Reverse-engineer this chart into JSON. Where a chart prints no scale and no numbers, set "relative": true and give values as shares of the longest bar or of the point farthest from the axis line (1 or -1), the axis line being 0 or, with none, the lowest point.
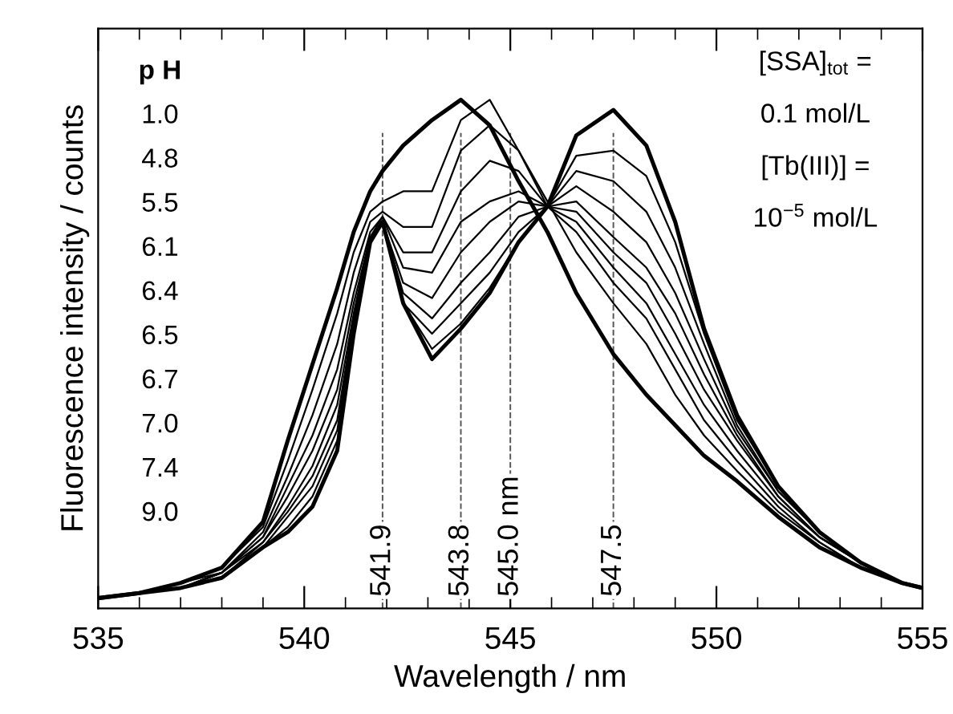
{
  "chart_data": {
    "type": "line",
    "relative": true,
    "xlabel": "Wavelength / nm",
    "ylabel": "Fluorescence intensity / counts",
    "grid": false,
    "marker": "none",
    "line_style": "solid",
    "xlim": [
      535,
      555
    ],
    "xticks": [
      535,
      540,
      545,
      550,
      555
    ],
    "x": [
      535,
      536,
      537,
      538,
      539,
      539.6,
      540.2,
      540.8,
      541.2,
      541.6,
      541.9,
      542.4,
      543.1,
      543.8,
      544.5,
      545.2,
      545.9,
      546.6,
      547.5,
      548.3,
      549,
      549.7,
      550.5,
      551.5,
      552.5,
      553.5,
      554.5,
      555
    ],
    "series": [
      {
        "color": "#000000",
        "values": [
          0.02,
          0.03,
          0.05,
          0.08,
          0.17,
          0.33,
          0.48,
          0.63,
          0.74,
          0.82,
          0.86,
          0.91,
          0.96,
          1.0,
          0.95,
          0.84,
          0.74,
          0.62,
          0.5,
          0.42,
          0.36,
          0.3,
          0.25,
          0.18,
          0.12,
          0.08,
          0.05,
          0.04
        ]
      },
      {
        "color": "#000000",
        "values": [
          0.02,
          0.03,
          0.05,
          0.08,
          0.16,
          0.29,
          0.43,
          0.58,
          0.7,
          0.78,
          0.8,
          0.82,
          0.82,
          0.96,
          1.0,
          0.9,
          0.8,
          0.7,
          0.6,
          0.52,
          0.42,
          0.34,
          0.27,
          0.19,
          0.13,
          0.08,
          0.05,
          0.04
        ]
      },
      {
        "color": "#000000",
        "values": [
          0.02,
          0.03,
          0.05,
          0.07,
          0.15,
          0.26,
          0.38,
          0.52,
          0.66,
          0.76,
          0.78,
          0.75,
          0.75,
          0.9,
          0.95,
          0.9,
          0.79,
          0.74,
          0.64,
          0.57,
          0.47,
          0.37,
          0.29,
          0.2,
          0.13,
          0.08,
          0.05,
          0.04
        ]
      },
      {
        "color": "#000000",
        "values": [
          0.02,
          0.03,
          0.04,
          0.07,
          0.14,
          0.24,
          0.34,
          0.47,
          0.62,
          0.74,
          0.77,
          0.7,
          0.7,
          0.82,
          0.88,
          0.86,
          0.79,
          0.76,
          0.67,
          0.6,
          0.5,
          0.4,
          0.31,
          0.21,
          0.14,
          0.09,
          0.05,
          0.04
        ]
      },
      {
        "color": "#000000",
        "values": [
          0.02,
          0.03,
          0.04,
          0.07,
          0.14,
          0.22,
          0.31,
          0.43,
          0.6,
          0.73,
          0.77,
          0.67,
          0.66,
          0.76,
          0.8,
          0.82,
          0.79,
          0.78,
          0.7,
          0.64,
          0.54,
          0.43,
          0.33,
          0.22,
          0.14,
          0.09,
          0.05,
          0.04
        ]
      },
      {
        "color": "#000000",
        "values": [
          0.02,
          0.03,
          0.04,
          0.07,
          0.13,
          0.2,
          0.28,
          0.4,
          0.58,
          0.73,
          0.76,
          0.64,
          0.61,
          0.7,
          0.76,
          0.8,
          0.79,
          0.8,
          0.73,
          0.67,
          0.58,
          0.46,
          0.34,
          0.22,
          0.14,
          0.09,
          0.05,
          0.04
        ]
      },
      {
        "color": "#000000",
        "values": [
          0.02,
          0.03,
          0.04,
          0.06,
          0.13,
          0.19,
          0.26,
          0.37,
          0.57,
          0.72,
          0.76,
          0.62,
          0.57,
          0.64,
          0.7,
          0.77,
          0.79,
          0.83,
          0.78,
          0.72,
          0.62,
          0.49,
          0.35,
          0.23,
          0.15,
          0.09,
          0.05,
          0.04
        ]
      },
      {
        "color": "#000000",
        "values": [
          0.02,
          0.03,
          0.04,
          0.06,
          0.12,
          0.18,
          0.24,
          0.35,
          0.56,
          0.72,
          0.76,
          0.6,
          0.54,
          0.6,
          0.66,
          0.74,
          0.79,
          0.86,
          0.84,
          0.78,
          0.67,
          0.52,
          0.36,
          0.23,
          0.15,
          0.09,
          0.05,
          0.04
        ]
      },
      {
        "color": "#000000",
        "values": [
          0.02,
          0.03,
          0.04,
          0.06,
          0.12,
          0.16,
          0.22,
          0.33,
          0.55,
          0.72,
          0.76,
          0.6,
          0.51,
          0.56,
          0.63,
          0.72,
          0.79,
          0.89,
          0.9,
          0.85,
          0.72,
          0.54,
          0.37,
          0.24,
          0.15,
          0.09,
          0.05,
          0.04
        ]
      },
      {
        "color": "#000000",
        "values": [
          0.02,
          0.03,
          0.04,
          0.06,
          0.12,
          0.15,
          0.2,
          0.31,
          0.54,
          0.72,
          0.76,
          0.6,
          0.49,
          0.55,
          0.62,
          0.72,
          0.79,
          0.93,
          0.98,
          0.91,
          0.76,
          0.55,
          0.38,
          0.24,
          0.15,
          0.09,
          0.05,
          0.04
        ]
      }
    ],
    "ref_lines": [
      {
        "axis": "x",
        "value": 541.9,
        "label": "541.9",
        "color": "#555555",
        "line_style": "dashed"
      },
      {
        "axis": "x",
        "value": 543.8,
        "label": "543.8",
        "color": "#555555",
        "line_style": "dashed"
      },
      {
        "axis": "x",
        "value": 545.0,
        "label": "545.0 nm",
        "color": "#555555",
        "line_style": "dashed"
      },
      {
        "axis": "x",
        "value": 547.5,
        "label": "547.5",
        "color": "#555555",
        "line_style": "dashed"
      }
    ],
    "annotations": [
      "p H",
      "1.0",
      "4.8",
      "5.5",
      "6.1",
      "6.4",
      "6.5",
      "6.7",
      "7.0",
      "7.4",
      "9.0",
      "[SSA]$_{tot}$ =",
      "0.1 mol/L",
      "[Tb(III)] =",
      "10$^{−5}$ mol/L"
    ]
  }
}
